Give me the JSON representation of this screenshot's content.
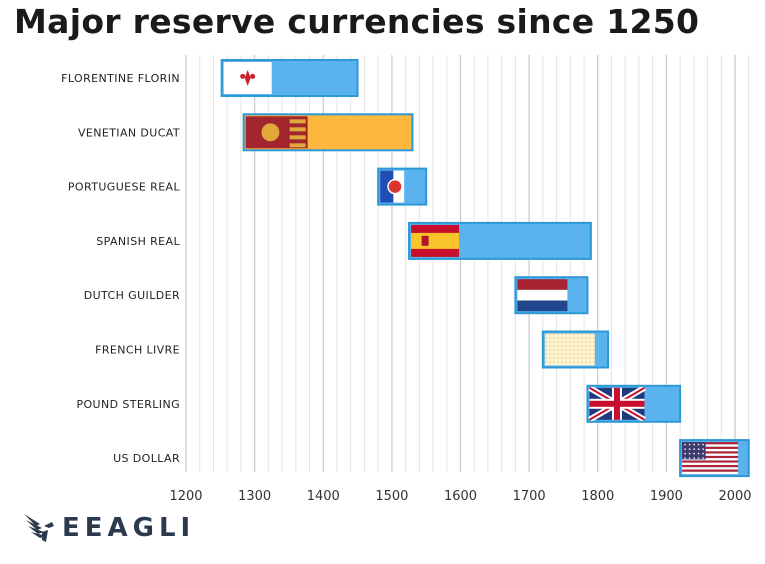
{
  "title": "Major reserve currencies since 1250",
  "logo": {
    "text": "EEAGLI"
  },
  "chart_data": {
    "type": "bar",
    "orientation": "horizontal",
    "title": "Major reserve currencies since 1250",
    "xlabel": "",
    "ylabel": "",
    "xlim": [
      1200,
      2020
    ],
    "x_ticks": [
      "1200",
      "1300",
      "1400",
      "1500",
      "1600",
      "1700",
      "1800",
      "1900",
      "2000"
    ],
    "grid": true,
    "categories": [
      "FLORENTINE FLORIN",
      "VENETIAN DUCAT",
      "PORTUGUESE REAL",
      "SPANISH REAL",
      "DUTCH GUILDER",
      "FRENCH LIVRE",
      "POUND STERLING",
      "US DOLLAR"
    ],
    "ranges": [
      {
        "start": 1252,
        "end": 1450,
        "flag": "florence",
        "color": "#5ab3ec"
      },
      {
        "start": 1284,
        "end": 1530,
        "flag": "venice",
        "color": "#fbb73e"
      },
      {
        "start": 1480,
        "end": 1550,
        "flag": "portugal",
        "color": "#5ab3ec"
      },
      {
        "start": 1525,
        "end": 1790,
        "flag": "spain",
        "color": "#5ab3ec"
      },
      {
        "start": 1680,
        "end": 1785,
        "flag": "netherlands",
        "color": "#5ab3ec"
      },
      {
        "start": 1720,
        "end": 1815,
        "flag": "france",
        "color": "#5ab3ec"
      },
      {
        "start": 1785,
        "end": 1920,
        "flag": "uk",
        "color": "#5ab3ec"
      },
      {
        "start": 1920,
        "end": 2020,
        "flag": "usa",
        "color": "#5ab3ec"
      }
    ]
  }
}
